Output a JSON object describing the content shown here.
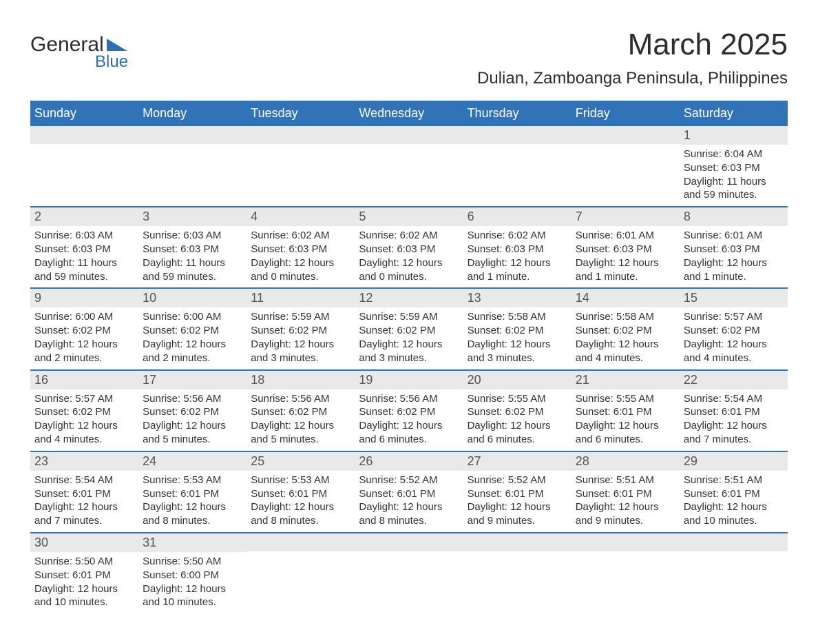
{
  "brand": {
    "line1": "General",
    "line2": "Blue"
  },
  "title": "March 2025",
  "location": "Dulian, Zamboanga Peninsula, Philippines",
  "colors": {
    "header_bg": "#3073b7",
    "header_text": "#ffffff",
    "daynum_bg": "#e9e9e9",
    "week_border": "#3073b7",
    "text": "#333333",
    "brand_dark": "#2d2d2d",
    "brand_blue": "#2f6fb0",
    "page_bg": "#ffffff"
  },
  "day_headers": [
    "Sunday",
    "Monday",
    "Tuesday",
    "Wednesday",
    "Thursday",
    "Friday",
    "Saturday"
  ],
  "weeks": [
    [
      {
        "n": "",
        "sr": "",
        "ss": "",
        "dl": ""
      },
      {
        "n": "",
        "sr": "",
        "ss": "",
        "dl": ""
      },
      {
        "n": "",
        "sr": "",
        "ss": "",
        "dl": ""
      },
      {
        "n": "",
        "sr": "",
        "ss": "",
        "dl": ""
      },
      {
        "n": "",
        "sr": "",
        "ss": "",
        "dl": ""
      },
      {
        "n": "",
        "sr": "",
        "ss": "",
        "dl": ""
      },
      {
        "n": "1",
        "sr": "Sunrise: 6:04 AM",
        "ss": "Sunset: 6:03 PM",
        "dl": "Daylight: 11 hours and 59 minutes."
      }
    ],
    [
      {
        "n": "2",
        "sr": "Sunrise: 6:03 AM",
        "ss": "Sunset: 6:03 PM",
        "dl": "Daylight: 11 hours and 59 minutes."
      },
      {
        "n": "3",
        "sr": "Sunrise: 6:03 AM",
        "ss": "Sunset: 6:03 PM",
        "dl": "Daylight: 11 hours and 59 minutes."
      },
      {
        "n": "4",
        "sr": "Sunrise: 6:02 AM",
        "ss": "Sunset: 6:03 PM",
        "dl": "Daylight: 12 hours and 0 minutes."
      },
      {
        "n": "5",
        "sr": "Sunrise: 6:02 AM",
        "ss": "Sunset: 6:03 PM",
        "dl": "Daylight: 12 hours and 0 minutes."
      },
      {
        "n": "6",
        "sr": "Sunrise: 6:02 AM",
        "ss": "Sunset: 6:03 PM",
        "dl": "Daylight: 12 hours and 1 minute."
      },
      {
        "n": "7",
        "sr": "Sunrise: 6:01 AM",
        "ss": "Sunset: 6:03 PM",
        "dl": "Daylight: 12 hours and 1 minute."
      },
      {
        "n": "8",
        "sr": "Sunrise: 6:01 AM",
        "ss": "Sunset: 6:03 PM",
        "dl": "Daylight: 12 hours and 1 minute."
      }
    ],
    [
      {
        "n": "9",
        "sr": "Sunrise: 6:00 AM",
        "ss": "Sunset: 6:02 PM",
        "dl": "Daylight: 12 hours and 2 minutes."
      },
      {
        "n": "10",
        "sr": "Sunrise: 6:00 AM",
        "ss": "Sunset: 6:02 PM",
        "dl": "Daylight: 12 hours and 2 minutes."
      },
      {
        "n": "11",
        "sr": "Sunrise: 5:59 AM",
        "ss": "Sunset: 6:02 PM",
        "dl": "Daylight: 12 hours and 3 minutes."
      },
      {
        "n": "12",
        "sr": "Sunrise: 5:59 AM",
        "ss": "Sunset: 6:02 PM",
        "dl": "Daylight: 12 hours and 3 minutes."
      },
      {
        "n": "13",
        "sr": "Sunrise: 5:58 AM",
        "ss": "Sunset: 6:02 PM",
        "dl": "Daylight: 12 hours and 3 minutes."
      },
      {
        "n": "14",
        "sr": "Sunrise: 5:58 AM",
        "ss": "Sunset: 6:02 PM",
        "dl": "Daylight: 12 hours and 4 minutes."
      },
      {
        "n": "15",
        "sr": "Sunrise: 5:57 AM",
        "ss": "Sunset: 6:02 PM",
        "dl": "Daylight: 12 hours and 4 minutes."
      }
    ],
    [
      {
        "n": "16",
        "sr": "Sunrise: 5:57 AM",
        "ss": "Sunset: 6:02 PM",
        "dl": "Daylight: 12 hours and 4 minutes."
      },
      {
        "n": "17",
        "sr": "Sunrise: 5:56 AM",
        "ss": "Sunset: 6:02 PM",
        "dl": "Daylight: 12 hours and 5 minutes."
      },
      {
        "n": "18",
        "sr": "Sunrise: 5:56 AM",
        "ss": "Sunset: 6:02 PM",
        "dl": "Daylight: 12 hours and 5 minutes."
      },
      {
        "n": "19",
        "sr": "Sunrise: 5:56 AM",
        "ss": "Sunset: 6:02 PM",
        "dl": "Daylight: 12 hours and 6 minutes."
      },
      {
        "n": "20",
        "sr": "Sunrise: 5:55 AM",
        "ss": "Sunset: 6:02 PM",
        "dl": "Daylight: 12 hours and 6 minutes."
      },
      {
        "n": "21",
        "sr": "Sunrise: 5:55 AM",
        "ss": "Sunset: 6:01 PM",
        "dl": "Daylight: 12 hours and 6 minutes."
      },
      {
        "n": "22",
        "sr": "Sunrise: 5:54 AM",
        "ss": "Sunset: 6:01 PM",
        "dl": "Daylight: 12 hours and 7 minutes."
      }
    ],
    [
      {
        "n": "23",
        "sr": "Sunrise: 5:54 AM",
        "ss": "Sunset: 6:01 PM",
        "dl": "Daylight: 12 hours and 7 minutes."
      },
      {
        "n": "24",
        "sr": "Sunrise: 5:53 AM",
        "ss": "Sunset: 6:01 PM",
        "dl": "Daylight: 12 hours and 8 minutes."
      },
      {
        "n": "25",
        "sr": "Sunrise: 5:53 AM",
        "ss": "Sunset: 6:01 PM",
        "dl": "Daylight: 12 hours and 8 minutes."
      },
      {
        "n": "26",
        "sr": "Sunrise: 5:52 AM",
        "ss": "Sunset: 6:01 PM",
        "dl": "Daylight: 12 hours and 8 minutes."
      },
      {
        "n": "27",
        "sr": "Sunrise: 5:52 AM",
        "ss": "Sunset: 6:01 PM",
        "dl": "Daylight: 12 hours and 9 minutes."
      },
      {
        "n": "28",
        "sr": "Sunrise: 5:51 AM",
        "ss": "Sunset: 6:01 PM",
        "dl": "Daylight: 12 hours and 9 minutes."
      },
      {
        "n": "29",
        "sr": "Sunrise: 5:51 AM",
        "ss": "Sunset: 6:01 PM",
        "dl": "Daylight: 12 hours and 10 minutes."
      }
    ],
    [
      {
        "n": "30",
        "sr": "Sunrise: 5:50 AM",
        "ss": "Sunset: 6:01 PM",
        "dl": "Daylight: 12 hours and 10 minutes."
      },
      {
        "n": "31",
        "sr": "Sunrise: 5:50 AM",
        "ss": "Sunset: 6:00 PM",
        "dl": "Daylight: 12 hours and 10 minutes."
      },
      {
        "n": "",
        "sr": "",
        "ss": "",
        "dl": ""
      },
      {
        "n": "",
        "sr": "",
        "ss": "",
        "dl": ""
      },
      {
        "n": "",
        "sr": "",
        "ss": "",
        "dl": ""
      },
      {
        "n": "",
        "sr": "",
        "ss": "",
        "dl": ""
      },
      {
        "n": "",
        "sr": "",
        "ss": "",
        "dl": ""
      }
    ]
  ]
}
